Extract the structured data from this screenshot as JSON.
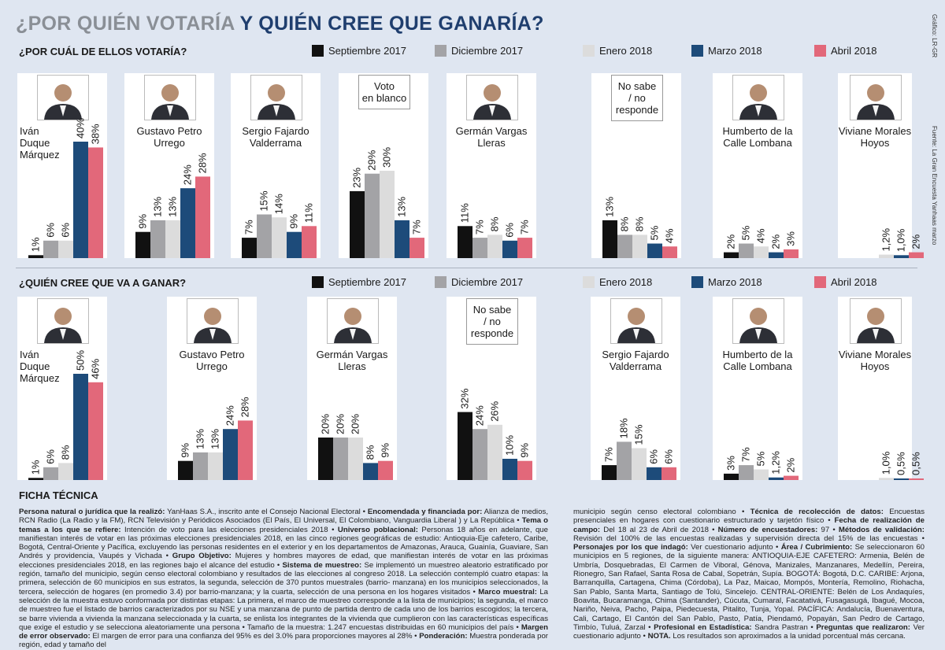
{
  "title_part1": "¿POR QUIÉN VOTARÍA",
  "title_part2": "Y QUIÉN CREE QUE GANARÍA?",
  "credit": "Gráfico: LR-GR",
  "source": "Fuente: La Gran Encuesta Yanhaas marzo",
  "colors": {
    "Septiembre 2017": "#111111",
    "Diciembre 2017": "#a3a3a6",
    "Enero 2018": "#dcdcdc",
    "Marzo 2018": "#1d4b7a",
    "Abril 2018": "#e2687a"
  },
  "legend": [
    "Septiembre 2017",
    "Diciembre 2017",
    "Enero 2018",
    "Marzo 2018",
    "Abril 2018"
  ],
  "chart_data": [
    {
      "type": "bar",
      "title": "¿POR CUÁL DE ELLOS VOTARÍA?",
      "series_names": [
        "Septiembre 2017",
        "Diciembre 2017",
        "Enero 2018",
        "Marzo 2018",
        "Abril 2018"
      ],
      "groups": [
        {
          "name": "Iván Duque Márquez",
          "name_lines": [
            "Iván",
            "Duque",
            "Márquez"
          ],
          "photo": true,
          "values": [
            1,
            6,
            6,
            40,
            38
          ],
          "labels": [
            "1%",
            "6%",
            "6%",
            "40%",
            "38%"
          ]
        },
        {
          "name": "Gustavo Petro Urrego",
          "name_lines": [
            "Gustavo Petro",
            "Urrego"
          ],
          "photo": true,
          "values": [
            9,
            13,
            13,
            24,
            28
          ],
          "labels": [
            "9%",
            "13%",
            "13%",
            "24%",
            "28%"
          ]
        },
        {
          "name": "Sergio Fajardo Valderrama",
          "name_lines": [
            "Sergio Fajardo",
            "Valderrama"
          ],
          "photo": true,
          "values": [
            7,
            15,
            14,
            9,
            11
          ],
          "labels": [
            "7%",
            "15%",
            "14%",
            "9%",
            "11%"
          ]
        },
        {
          "name": "Voto en blanco",
          "name_lines": [
            "Voto",
            "en blanco"
          ],
          "photo": false,
          "values": [
            23,
            29,
            30,
            13,
            7
          ],
          "labels": [
            "23%",
            "29%",
            "30%",
            "13%",
            "7%"
          ]
        },
        {
          "name": "Germán Vargas Lleras",
          "name_lines": [
            "Germán Vargas",
            "Lleras"
          ],
          "photo": true,
          "values": [
            11,
            7,
            8,
            6,
            7
          ],
          "labels": [
            "11%",
            "7%",
            "8%",
            "6%",
            "7%"
          ]
        },
        {
          "name": "No sabe / no responde",
          "name_lines": [
            "No sabe",
            "/ no",
            "responde"
          ],
          "photo": false,
          "values": [
            13,
            8,
            8,
            5,
            4
          ],
          "labels": [
            "13%",
            "8%",
            "8%",
            "5%",
            "4%"
          ]
        },
        {
          "name": "Humberto de la Calle Lombana",
          "name_lines": [
            "Humberto de la",
            "Calle Lombana"
          ],
          "photo": true,
          "values": [
            2,
            5,
            4,
            2,
            3
          ],
          "labels": [
            "2%",
            "5%",
            "4%",
            "2%",
            "3%"
          ]
        },
        {
          "name": "Viviane Morales Hoyos",
          "name_lines": [
            "Viviane Morales",
            "Hoyos"
          ],
          "photo": true,
          "values": [
            null,
            null,
            1.2,
            1.0,
            2
          ],
          "labels": [
            "",
            "",
            "1,2%",
            "1,0%",
            "2%"
          ]
        }
      ]
    },
    {
      "type": "bar",
      "title": "¿QUIÉN CREE QUE VA A GANAR?",
      "series_names": [
        "Septiembre 2017",
        "Diciembre 2017",
        "Enero 2018",
        "Marzo 2018",
        "Abril 2018"
      ],
      "groups": [
        {
          "name": "Iván Duque Márquez",
          "name_lines": [
            "Iván",
            "Duque",
            "Márquez"
          ],
          "photo": true,
          "values": [
            1,
            6,
            8,
            50,
            46
          ],
          "labels": [
            "1%",
            "6%",
            "8%",
            "50%",
            "46%"
          ]
        },
        {
          "name": "Gustavo Petro Urrego",
          "name_lines": [
            "Gustavo Petro",
            "Urrego"
          ],
          "photo": true,
          "values": [
            9,
            13,
            13,
            24,
            28
          ],
          "labels": [
            "9%",
            "13%",
            "13%",
            "24%",
            "28%"
          ]
        },
        {
          "name": "Germán Vargas Lleras",
          "name_lines": [
            "Germán Vargas",
            "Lleras"
          ],
          "photo": true,
          "values": [
            20,
            20,
            20,
            8,
            9
          ],
          "labels": [
            "20%",
            "20%",
            "20%",
            "8%",
            "9%"
          ]
        },
        {
          "name": "No sabe / no responde",
          "name_lines": [
            "No sabe",
            "/ no",
            "responde"
          ],
          "photo": false,
          "values": [
            32,
            24,
            26,
            10,
            9
          ],
          "labels": [
            "32%",
            "24%",
            "26%",
            "10%",
            "9%"
          ]
        },
        {
          "name": "Sergio Fajardo Valderrama",
          "name_lines": [
            "Sergio Fajardo",
            "Valderrama"
          ],
          "photo": true,
          "values": [
            7,
            18,
            15,
            6,
            6
          ],
          "labels": [
            "7%",
            "18%",
            "15%",
            "6%",
            "6%"
          ]
        },
        {
          "name": "Humberto de la Calle Lombana",
          "name_lines": [
            "Humberto de la",
            "Calle Lombana"
          ],
          "photo": true,
          "values": [
            3,
            7,
            5,
            1.2,
            2
          ],
          "labels": [
            "3%",
            "7%",
            "5%",
            "1,2%",
            "2%"
          ]
        },
        {
          "name": "Viviane Morales Hoyos",
          "name_lines": [
            "Viviane Morales",
            "Hoyos"
          ],
          "photo": true,
          "values": [
            null,
            null,
            1.0,
            0.5,
            0.5
          ],
          "labels": [
            "",
            "",
            "1,0%",
            "0,5%",
            "0,5%"
          ]
        }
      ]
    }
  ],
  "ficha": {
    "title": "FICHA TÉCNICA",
    "left": [
      {
        "b": "Persona natural o jurídica que la realizó:",
        "t": " YanHaas S.A., inscrito ante el Consejo Nacional Electoral • "
      },
      {
        "b": "Encomendada y financiada por:",
        "t": " Alianza de medios, RCN Radio (La Radio y la FM), RCN Televisión y Periódicos Asociados (El País, El Universal, El Colombiano, Vanguardia Liberal ) y La República • "
      },
      {
        "b": "Tema o temas a los que se refiere:",
        "t": " Intención de voto para las elecciones presidenciales 2018 • "
      },
      {
        "b": "Universo poblacional:",
        "t": " Personas 18 años en adelante, que manifiestan interés de votar en las próximas elecciones presidenciales 2018, en las cinco regiones geográficas de estudio: Antioquia-Eje cafetero, Caribe, Bogotá, Central-Oriente y Pacífica, excluyendo las personas residentes en el exterior y en los departamentos de Amazonas, Arauca, Guainía, Guaviare, San Andrés y providencia, Vaupés y Vichada • "
      },
      {
        "b": "Grupo Objetivo:",
        "t": " Mujeres y hombres mayores de edad, que manifiestan interés de votar en las próximas elecciones presidenciales 2018, en las regiones bajo el alcance del estudio • "
      },
      {
        "b": "Sistema de muestreo:",
        "t": " Se implementó un muestreo aleatorio estratificado por región, tamaño del municipio, según censo electoral colombiano y resultados de las elecciones al congreso 2018. La selección contempló cuatro etapas: la primera, selección de 60 municipios en sus estratos, la segunda, selección de 370 puntos muestrales (barrio- manzana) en los municipios seleccionados, la tercera, selección de hogares (en promedio 3.4) por barrio-manzana; y la cuarta, selección de una persona en los hogares visitados • "
      },
      {
        "b": "Marco muestral:",
        "t": " La selección de la muestra estuvo conformada por distintas etapas: La primera, el marco de muestreo corresponde a la lista de municipios; la segunda, el marco de muestreo fue el listado de barrios caracterizados por su NSE y una manzana de punto de partida dentro de cada uno de los barrios escogidos; la tercera, se barre vivienda a vivienda la manzana seleccionada y la cuarta, se enlista los integrantes de la vivienda que cumplieron con las características específicas que exige el estudio y se selecciona aleatoriamente una persona • Tamaño de la muestra: 1.247 encuestas distribuidas en 60 municipios del país • "
      },
      {
        "b": "Margen de error observado:",
        "t": " El margen de error para una confianza del 95% es del 3.0% para proporciones mayores al 28% • "
      },
      {
        "b": "Ponderación:",
        "t": " Muestra ponderada por región, edad y tamaño del"
      }
    ],
    "right": [
      {
        "b": "",
        "t": "municipio según censo electoral colombiano • "
      },
      {
        "b": "Técnica de recolección de datos:",
        "t": " Encuestas presenciales en hogares con cuestionario estructurado y tarjetón físico • "
      },
      {
        "b": "Fecha de realización de campo:",
        "t": " Del 18 al 23 de Abril de 2018 • "
      },
      {
        "b": "Número de encuestadores:",
        "t": " 97 • "
      },
      {
        "b": "Métodos de validación:",
        "t": " Revisión del 100% de las encuestas realizadas y supervisión directa del 15% de las encuestas • "
      },
      {
        "b": "Personajes por los que indagó:",
        "t": " Ver cuestionario adjunto • "
      },
      {
        "b": "Área / Cubrimiento:",
        "t": " Se seleccionaron 60 municipios en 5 regiones, de la siguiente manera: ANTIOQUIA-EJE CAFETERO: Armenia, Belén de Umbría, Dosquebradas, El Carmen de Viboral, Génova, Manizales, Manzanares, Medellín, Pereira, Rionegro, San Rafael, Santa Rosa de Cabal, Sopetrán, Supía. BOGOTÁ: Bogotá, D.C. CARIBE: Arjona, Barranquilla, Cartagena, Chima (Córdoba), La Paz, Maicao, Mompós, Montería, Remolino, Riohacha, San Pablo, Santa Marta, Santiago de Tolú, Sincelejo. CENTRAL-ORIENTE: Belén de Los Andaquíes, Boavita, Bucaramanga, Chima (Santander), Cúcuta, Cumaral, Facatativá, Fusagasugá, Ibagué, Mocoa, Nariño, Neiva, Pacho, Paipa, Piedecuesta, Pitalito, Tunja, Yopal. PACÍFICA: Andalucía, Buenaventura, Cali, Cartago, El Cantón del San Pablo, Pasto, Patía, Piendamó, Popayán, San Pedro de Cartago, Timbío, Tuluá, Zarzal • "
      },
      {
        "b": "Profesional en Estadística:",
        "t": " Sandra Pastran • "
      },
      {
        "b": "Preguntas que realizaron:",
        "t": " Ver cuestionario adjunto • "
      },
      {
        "b": "NOTA.",
        "t": " Los resultados son aproximados a la unidad porcentual más cercana."
      }
    ]
  }
}
